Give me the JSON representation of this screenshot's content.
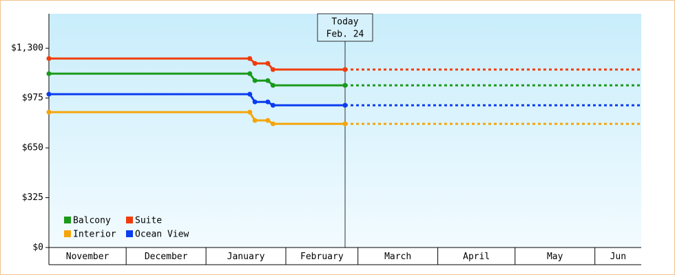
{
  "chart_data": {
    "type": "line",
    "step": true,
    "x": [
      0,
      78,
      80,
      85,
      87,
      115
    ],
    "xlim": [
      0,
      230
    ],
    "xticks": [
      {
        "value": 0,
        "label": "November"
      },
      {
        "value": 30,
        "label": "December"
      },
      {
        "value": 61,
        "label": "January"
      },
      {
        "value": 92,
        "label": "February"
      },
      {
        "value": 120,
        "label": "March"
      },
      {
        "value": 151,
        "label": "April"
      },
      {
        "value": 181,
        "label": "May"
      },
      {
        "value": 212,
        "label": "Jun"
      }
    ],
    "ylim": [
      0,
      1525
    ],
    "yticks": [
      {
        "value": 0,
        "label": "$0"
      },
      {
        "value": 325,
        "label": "$325"
      },
      {
        "value": 650,
        "label": "$650"
      },
      {
        "value": 975,
        "label": "$975"
      },
      {
        "value": 1300,
        "label": "$1,300"
      }
    ],
    "series": [
      {
        "name": "Balcony",
        "color": "#1a9a1a",
        "values": [
          1134,
          1134,
          1089,
          1089,
          1058,
          1058
        ]
      },
      {
        "name": "Suite",
        "color": "#f03c0a",
        "values": [
          1233,
          1233,
          1201,
          1201,
          1161,
          1161
        ]
      },
      {
        "name": "Interior",
        "color": "#f5a50a",
        "values": [
          883,
          883,
          829,
          829,
          807,
          807
        ]
      },
      {
        "name": "Ocean View",
        "color": "#0a3cf0",
        "values": [
          1000,
          1000,
          950,
          950,
          928,
          928
        ]
      }
    ],
    "today": {
      "x": 115,
      "label": "Today",
      "date": "Feb. 24"
    },
    "legend": "lower-left"
  }
}
